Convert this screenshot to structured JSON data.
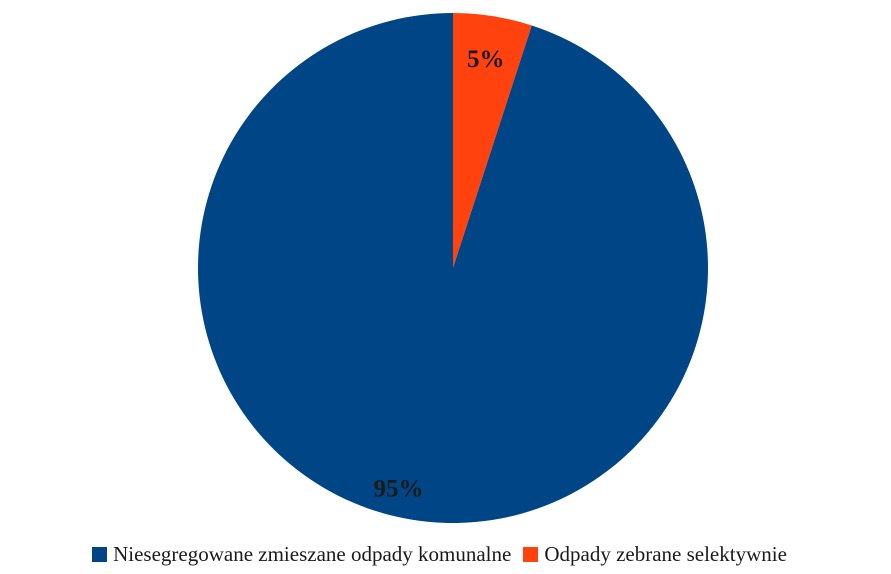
{
  "chart_data": {
    "type": "pie",
    "title": "",
    "categories": [
      "Niesegregowane zmieszane odpady komunalne",
      "Odpady zebrane selektywnie"
    ],
    "values": [
      95,
      5
    ],
    "data_labels": [
      "95%",
      "5%"
    ],
    "colors": [
      "#004586",
      "#ff420e"
    ],
    "legend_position": "bottom",
    "start_angle_deg": 0,
    "direction": "clockwise"
  }
}
